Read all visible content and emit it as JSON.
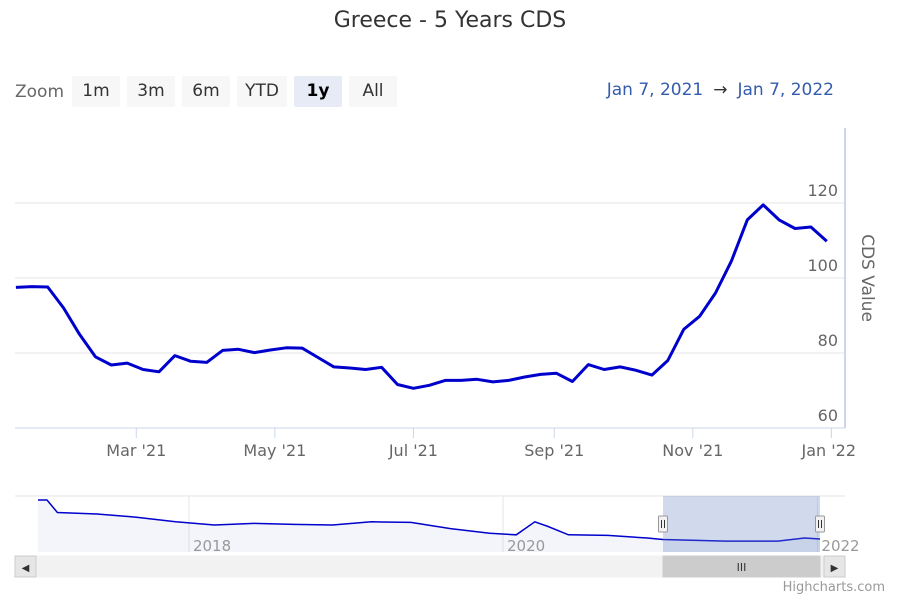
{
  "title": "Greece - 5 Years CDS",
  "range_selector": {
    "zoom_label": "Zoom",
    "buttons": [
      {
        "label": "1m",
        "active": false
      },
      {
        "label": "3m",
        "active": false
      },
      {
        "label": "6m",
        "active": false
      },
      {
        "label": "YTD",
        "active": false
      },
      {
        "label": "1y",
        "active": true
      },
      {
        "label": "All",
        "active": false
      }
    ],
    "from": "Jan 7, 2021",
    "arrow": "→",
    "to": "Jan 7, 2022"
  },
  "colors": {
    "series": "#0000cc",
    "navigator_mask": "rgba(102,133,194,0.3)",
    "gridline": "#e6e6e6"
  },
  "chart_data": {
    "type": "line",
    "title": "Greece - 5 Years CDS",
    "ylabel": "CDS Value",
    "ylim": [
      60,
      140
    ],
    "y_ticks": [
      60,
      80,
      100,
      120
    ],
    "x_ticks": [
      "Mar '21",
      "May '21",
      "Jul '21",
      "Sep '21",
      "Nov '21",
      "Jan '22"
    ],
    "grid": true,
    "series": [
      {
        "values": [
          [
            "2021-01-07",
            97.5
          ],
          [
            "2021-01-14",
            97.7
          ],
          [
            "2021-01-21",
            97.6
          ],
          [
            "2021-01-28",
            92
          ],
          [
            "2021-02-04",
            85
          ],
          [
            "2021-02-11",
            79
          ],
          [
            "2021-02-18",
            76.8
          ],
          [
            "2021-02-25",
            77.3
          ],
          [
            "2021-03-04",
            75.6
          ],
          [
            "2021-03-11",
            75
          ],
          [
            "2021-03-18",
            79.3
          ],
          [
            "2021-03-25",
            77.8
          ],
          [
            "2021-04-01",
            77.5
          ],
          [
            "2021-04-08",
            80.7
          ],
          [
            "2021-04-15",
            81
          ],
          [
            "2021-04-22",
            80.1
          ],
          [
            "2021-04-29",
            80.8
          ],
          [
            "2021-05-06",
            81.4
          ],
          [
            "2021-05-13",
            81.3
          ],
          [
            "2021-05-20",
            78.8
          ],
          [
            "2021-05-27",
            76.3
          ],
          [
            "2021-06-03",
            76
          ],
          [
            "2021-06-10",
            75.6
          ],
          [
            "2021-06-17",
            76.2
          ],
          [
            "2021-06-24",
            71.6
          ],
          [
            "2021-07-01",
            70.6
          ],
          [
            "2021-07-08",
            71.4
          ],
          [
            "2021-07-15",
            72.7
          ],
          [
            "2021-07-22",
            72.7
          ],
          [
            "2021-07-29",
            73
          ],
          [
            "2021-08-05",
            72.3
          ],
          [
            "2021-08-12",
            72.7
          ],
          [
            "2021-08-19",
            73.6
          ],
          [
            "2021-08-26",
            74.3
          ],
          [
            "2021-09-02",
            74.6
          ],
          [
            "2021-09-09",
            72.4
          ],
          [
            "2021-09-16",
            76.9
          ],
          [
            "2021-09-23",
            75.6
          ],
          [
            "2021-09-30",
            76.3
          ],
          [
            "2021-10-07",
            75.4
          ],
          [
            "2021-10-14",
            74.1
          ],
          [
            "2021-10-21",
            78
          ],
          [
            "2021-10-28",
            86.3
          ],
          [
            "2021-11-04",
            89.8
          ],
          [
            "2021-11-11",
            96
          ],
          [
            "2021-11-18",
            104.5
          ],
          [
            "2021-11-25",
            115.5
          ],
          [
            "2021-12-02",
            119.5
          ],
          [
            "2021-12-09",
            115.5
          ],
          [
            "2021-12-16",
            113.2
          ],
          [
            "2021-12-23",
            113.6
          ],
          [
            "2021-12-30",
            109.8
          ]
        ]
      }
    ],
    "navigator": {
      "x_labels": [
        "2018",
        "2020",
        "2022"
      ],
      "values": [
        [
          "2017-01-15",
          100
        ],
        [
          "2017-02-05",
          100
        ],
        [
          "2017-03-01",
          76
        ],
        [
          "2017-06-01",
          73
        ],
        [
          "2017-09-01",
          67
        ],
        [
          "2017-12-01",
          58
        ],
        [
          "2018-03-01",
          52
        ],
        [
          "2018-06-01",
          55
        ],
        [
          "2018-09-01",
          53
        ],
        [
          "2018-12-01",
          52
        ],
        [
          "2019-03-01",
          58
        ],
        [
          "2019-06-01",
          57
        ],
        [
          "2019-09-01",
          45
        ],
        [
          "2019-12-01",
          36
        ],
        [
          "2020-02-01",
          33
        ],
        [
          "2020-03-15",
          58
        ],
        [
          "2020-04-15",
          49
        ],
        [
          "2020-06-01",
          33
        ],
        [
          "2020-09-01",
          32
        ],
        [
          "2020-12-01",
          27
        ],
        [
          "2021-01-07",
          24
        ],
        [
          "2021-06-01",
          21
        ],
        [
          "2021-10-01",
          21
        ],
        [
          "2021-12-02",
          27
        ],
        [
          "2022-01-07",
          25
        ]
      ],
      "selected_from": "2021-01-07",
      "selected_to": "2022-01-07"
    }
  },
  "scrollbar": {
    "left_arrow": "◀",
    "right_arrow": "▶",
    "grip": "III"
  },
  "credit": "Highcharts.com"
}
